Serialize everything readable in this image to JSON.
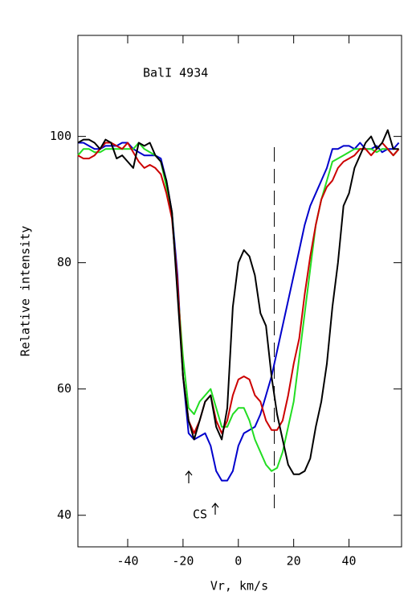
{
  "chart_data": {
    "type": "line",
    "title": "BalI 4934",
    "xlabel": "Vr, km/s",
    "ylabel": "Relative intensity",
    "annotations": [
      "CS"
    ],
    "vline": 13,
    "xlim": [
      -58,
      59
    ],
    "ylim": [
      35,
      116
    ],
    "xticks": [
      -40,
      -20,
      0,
      20,
      40
    ],
    "yticks": [
      40,
      60,
      80,
      100
    ],
    "x": [
      -58,
      -56,
      -54,
      -52,
      -50,
      -48,
      -46,
      -44,
      -42,
      -40,
      -38,
      -36,
      -34,
      -32,
      -30,
      -28,
      -26,
      -24,
      -22,
      -20,
      -18,
      -16,
      -14,
      -12,
      -10,
      -8,
      -6,
      -4,
      -2,
      0,
      2,
      4,
      6,
      8,
      10,
      12,
      14,
      16,
      18,
      20,
      22,
      24,
      26,
      28,
      30,
      32,
      34,
      36,
      38,
      40,
      42,
      44,
      46,
      48,
      50,
      52,
      54,
      56,
      58
    ],
    "series": [
      {
        "color": "#0000cc",
        "values": [
          99,
          99,
          98.5,
          98,
          98,
          98.5,
          98.5,
          98.5,
          99,
          99,
          98,
          97.5,
          97,
          97,
          97,
          96.5,
          93,
          88,
          78,
          62,
          53,
          52,
          52.5,
          53,
          51,
          47,
          45.5,
          45.5,
          47,
          51,
          53,
          53.5,
          54,
          56,
          59,
          62,
          66,
          70,
          74,
          78,
          82,
          86,
          89,
          91,
          93,
          95,
          98,
          98,
          98.5,
          98.5,
          98,
          99,
          98,
          98,
          98.5,
          97.5,
          98,
          98,
          99
        ]
      },
      {
        "color": "#22dd22",
        "values": [
          97,
          98,
          98,
          97.5,
          97.5,
          98,
          98,
          98,
          98,
          98,
          98,
          99,
          98,
          97.5,
          97,
          96,
          92,
          88,
          76,
          65,
          57,
          56,
          58,
          59,
          60,
          57,
          54,
          54,
          56,
          57,
          57,
          55,
          52,
          50,
          48,
          47,
          47.5,
          50,
          54,
          58,
          65,
          72,
          79,
          86,
          90,
          93,
          96,
          96.5,
          97,
          97.5,
          98,
          98,
          98,
          98,
          97.5,
          98,
          98,
          97,
          98
        ]
      },
      {
        "color": "#cc0000",
        "values": [
          97,
          96.5,
          96.5,
          97,
          98,
          99,
          99,
          98.5,
          98,
          99,
          97.5,
          96,
          95,
          95.5,
          95,
          94,
          91,
          87,
          77,
          62,
          55,
          53,
          55,
          58,
          59,
          55,
          53,
          55,
          59,
          61.5,
          62,
          61.5,
          59,
          58,
          55,
          53.5,
          53.5,
          55,
          59,
          64,
          68,
          75,
          81,
          86,
          90,
          92,
          93,
          95,
          96,
          96.5,
          97,
          98,
          98,
          97,
          98,
          99,
          98,
          97,
          98
        ]
      },
      {
        "color": "#000000",
        "values": [
          99,
          99.5,
          99.5,
          99,
          98,
          99.5,
          99,
          96.5,
          97,
          96,
          95,
          99,
          98.5,
          99,
          97,
          96,
          93,
          88,
          75,
          62,
          55,
          52,
          55,
          58,
          59,
          54,
          52,
          57,
          73,
          80,
          82,
          81,
          78,
          72,
          70,
          62,
          56,
          52,
          48,
          46.5,
          46.5,
          47,
          49,
          54,
          58,
          64,
          73,
          80,
          89,
          91,
          95,
          97,
          99,
          100,
          98,
          99,
          101,
          98,
          98
        ]
      }
    ]
  }
}
